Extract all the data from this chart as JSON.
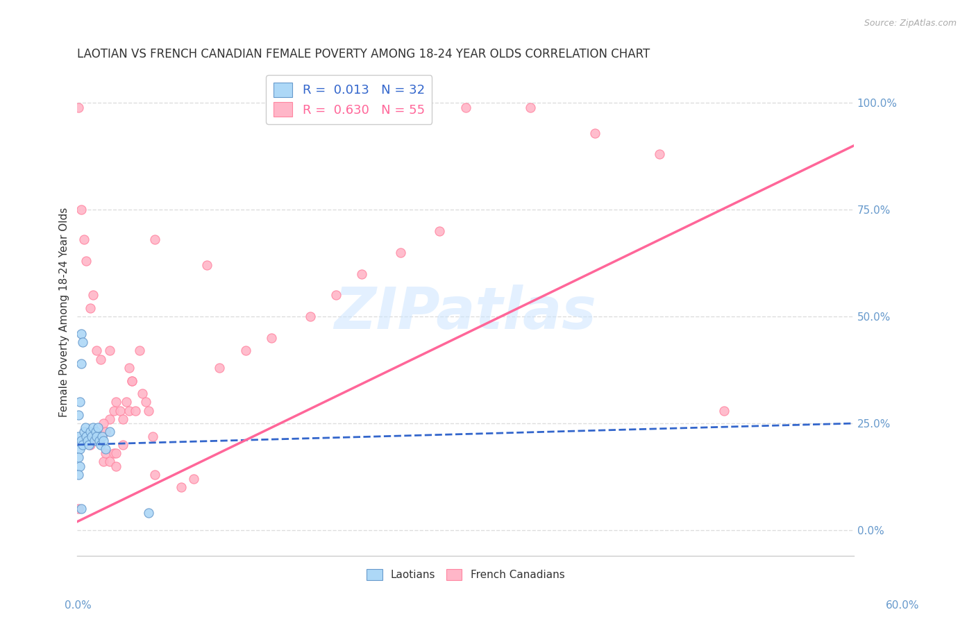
{
  "title": "LAOTIAN VS FRENCH CANADIAN FEMALE POVERTY AMONG 18-24 YEAR OLDS CORRELATION CHART",
  "source": "Source: ZipAtlas.com",
  "ylabel": "Female Poverty Among 18-24 Year Olds",
  "watermark": "ZIPatlas",
  "laotian_color": "#ADD8F7",
  "french_canadian_color": "#FFB6C8",
  "laotian_edge_color": "#6699CC",
  "french_canadian_edge_color": "#FF85A1",
  "laotian_line_color": "#3366CC",
  "french_canadian_line_color": "#FF6699",
  "background_color": "#FFFFFF",
  "grid_color": "#DDDDDD",
  "title_color": "#333333",
  "axis_label_color": "#6699CC",
  "right_axis_color": "#6699CC",
  "xmin": 0.0,
  "xmax": 0.6,
  "ymin": -0.06,
  "ymax": 1.08,
  "laotian_R": 0.013,
  "laotian_N": 32,
  "french_canadian_R": 0.63,
  "french_canadian_N": 55,
  "laotian_scatter_x": [
    0.001,
    0.002,
    0.003,
    0.004,
    0.005,
    0.006,
    0.007,
    0.008,
    0.009,
    0.01,
    0.011,
    0.012,
    0.013,
    0.014,
    0.015,
    0.016,
    0.017,
    0.018,
    0.019,
    0.02,
    0.022,
    0.025,
    0.003,
    0.004,
    0.003,
    0.001,
    0.002,
    0.001,
    0.002,
    0.001,
    0.003,
    0.055
  ],
  "laotian_scatter_y": [
    0.22,
    0.19,
    0.21,
    0.2,
    0.23,
    0.24,
    0.22,
    0.21,
    0.2,
    0.23,
    0.22,
    0.24,
    0.21,
    0.23,
    0.22,
    0.24,
    0.21,
    0.2,
    0.22,
    0.21,
    0.19,
    0.23,
    0.46,
    0.44,
    0.39,
    0.27,
    0.3,
    0.17,
    0.15,
    0.13,
    0.05,
    0.04
  ],
  "french_scatter_x": [
    0.001,
    0.003,
    0.005,
    0.007,
    0.01,
    0.012,
    0.015,
    0.018,
    0.02,
    0.022,
    0.025,
    0.028,
    0.03,
    0.033,
    0.035,
    0.038,
    0.04,
    0.042,
    0.045,
    0.048,
    0.05,
    0.053,
    0.055,
    0.058,
    0.01,
    0.012,
    0.025,
    0.028,
    0.02,
    0.022,
    0.025,
    0.03,
    0.03,
    0.035,
    0.04,
    0.042,
    0.06,
    0.08,
    0.09,
    0.1,
    0.11,
    0.13,
    0.15,
    0.18,
    0.2,
    0.22,
    0.25,
    0.28,
    0.3,
    0.35,
    0.4,
    0.45,
    0.5,
    0.001,
    0.06
  ],
  "french_scatter_y": [
    0.99,
    0.75,
    0.68,
    0.63,
    0.52,
    0.55,
    0.42,
    0.4,
    0.16,
    0.18,
    0.26,
    0.28,
    0.3,
    0.28,
    0.26,
    0.3,
    0.28,
    0.35,
    0.28,
    0.42,
    0.32,
    0.3,
    0.28,
    0.22,
    0.2,
    0.22,
    0.16,
    0.18,
    0.25,
    0.23,
    0.42,
    0.18,
    0.15,
    0.2,
    0.38,
    0.35,
    0.13,
    0.1,
    0.12,
    0.62,
    0.38,
    0.42,
    0.45,
    0.5,
    0.55,
    0.6,
    0.65,
    0.7,
    0.99,
    0.99,
    0.93,
    0.88,
    0.28,
    0.05,
    0.68
  ]
}
